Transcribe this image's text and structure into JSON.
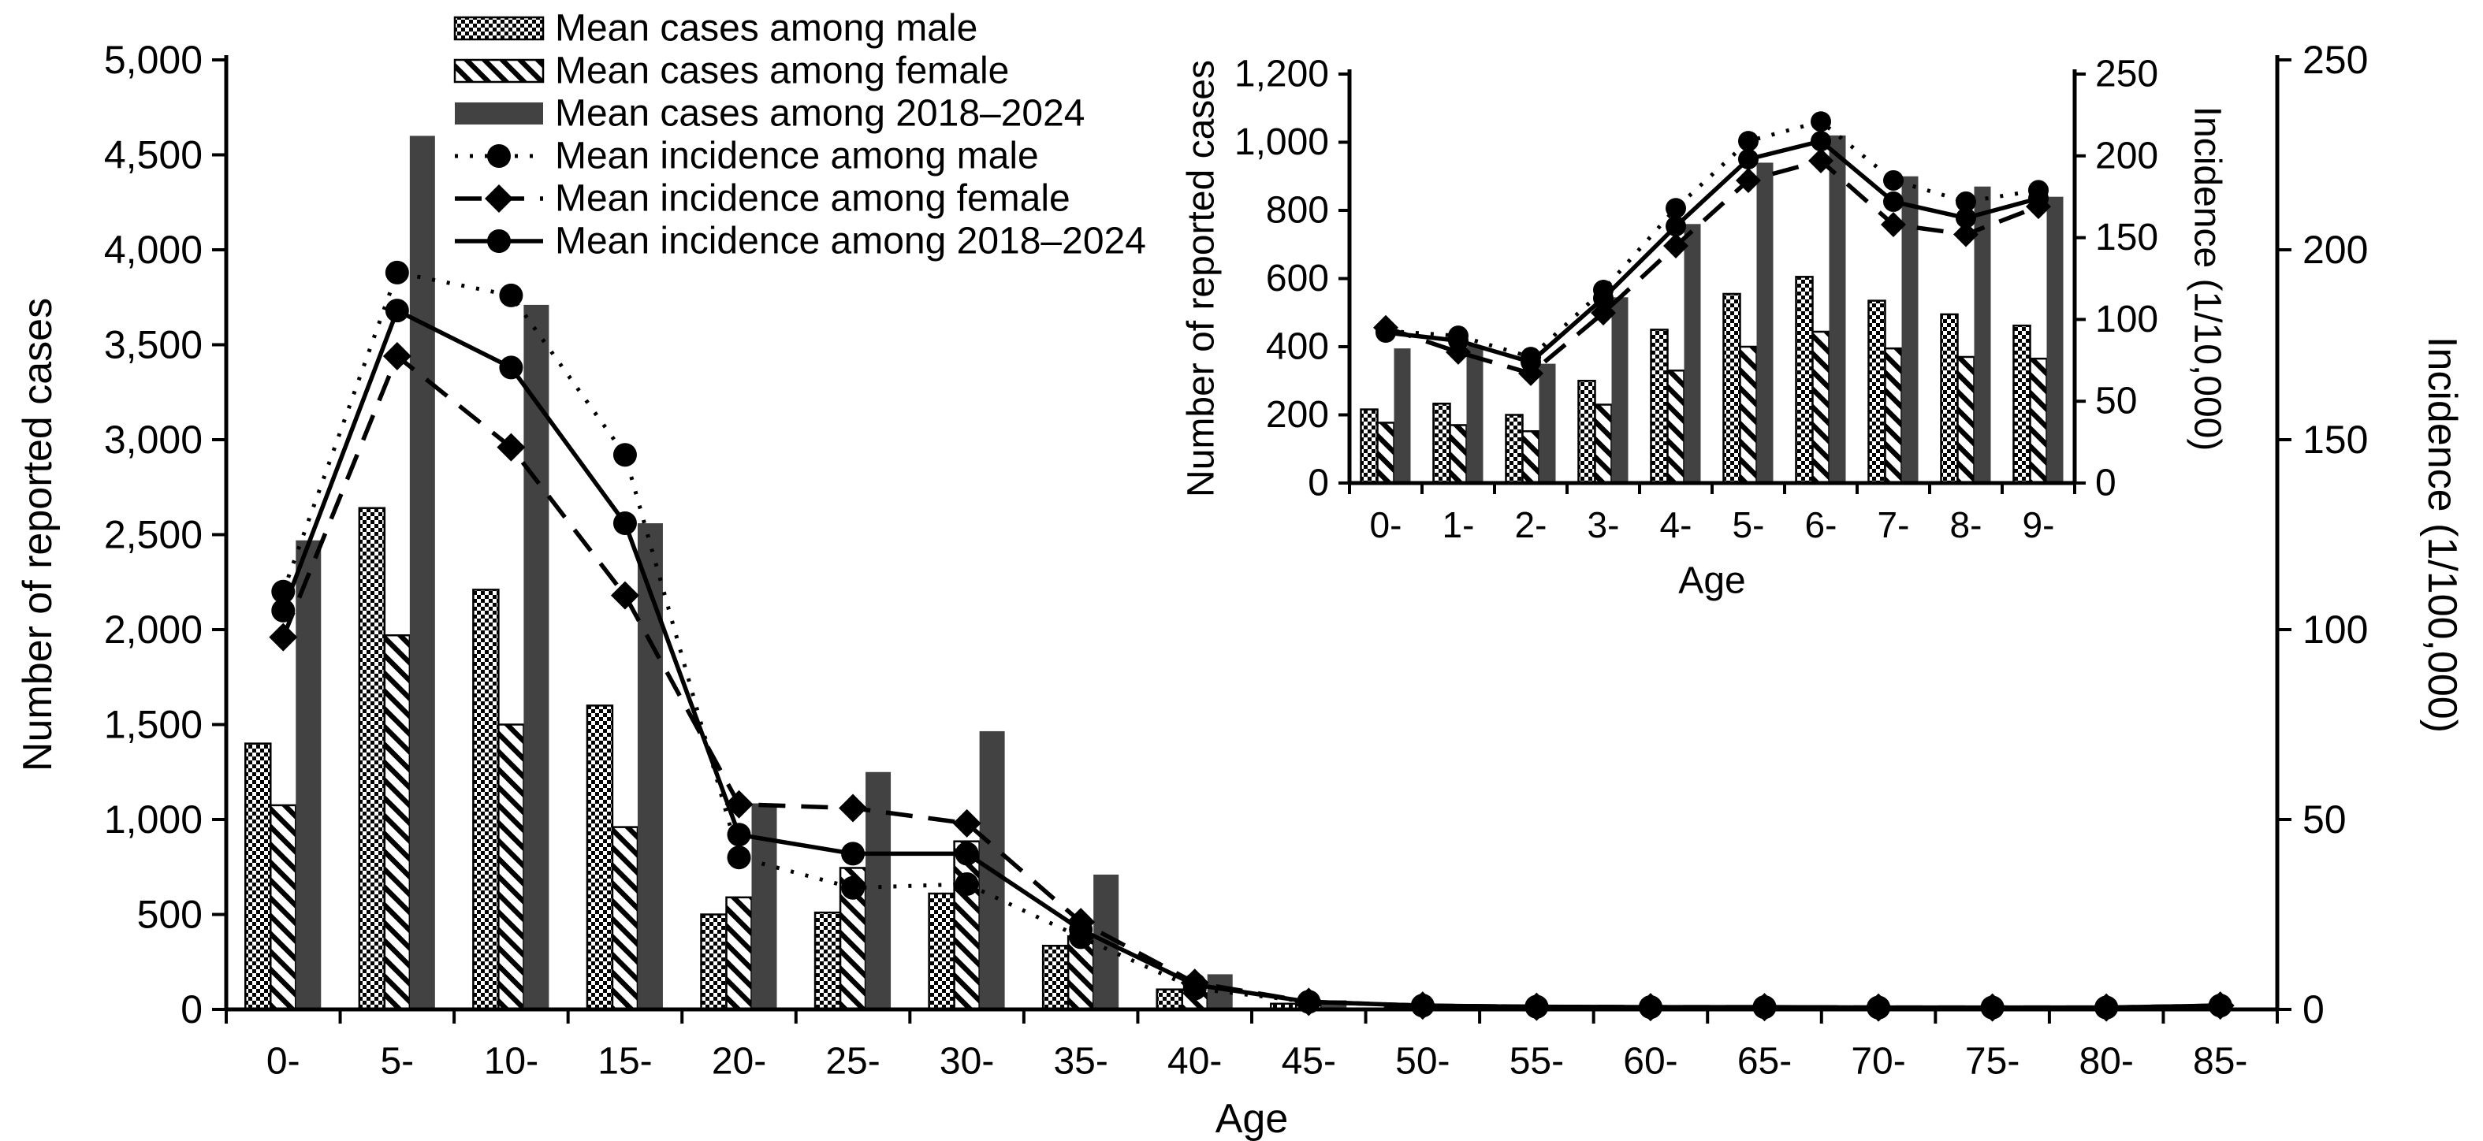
{
  "colors": {
    "ink": "#000000",
    "bar_overall": "#424242",
    "background": "#ffffff"
  },
  "legend": {
    "position": "top-left",
    "entries": [
      {
        "label": "Mean cases among male",
        "swatch": "bar-checker"
      },
      {
        "label": "Mean cases among female",
        "swatch": "bar-stripes"
      },
      {
        "label": "Mean cases among 2018–2024",
        "swatch": "bar-gray"
      },
      {
        "label": "Mean incidence among male",
        "swatch": "line-dotted-circle"
      },
      {
        "label": "Mean incidence among female",
        "swatch": "line-dashed-diamond"
      },
      {
        "label": "Mean incidence among 2018–2024",
        "swatch": "line-solid-circle"
      }
    ]
  },
  "chart_data": [
    {
      "id": "main",
      "type": "bar+line",
      "title": "",
      "xlabel": "Age",
      "ylabel_left": "Number of reported cases",
      "ylabel_right": "Incidence (1/100,000)",
      "ylim_left": [
        0,
        5000
      ],
      "ylim_right": [
        0,
        250
      ],
      "grid": false,
      "yticks_left": {
        "values": [
          0,
          500,
          1000,
          1500,
          2000,
          2500,
          3000,
          3500,
          4000,
          4500,
          5000
        ],
        "labels": [
          "0",
          "500",
          "1,000",
          "1,500",
          "2,000",
          "2,500",
          "3,000",
          "3,500",
          "4,000",
          "4,500",
          "5,000"
        ]
      },
      "yticks_right": {
        "values": [
          0,
          50,
          100,
          150,
          200,
          250
        ],
        "labels": [
          "0",
          "50",
          "100",
          "150",
          "200",
          "250"
        ]
      },
      "categories": [
        "0-",
        "5-",
        "10-",
        "15-",
        "20-",
        "25-",
        "30-",
        "35-",
        "40-",
        "45-",
        "50-",
        "55-",
        "60-",
        "65-",
        "70-",
        "75-",
        "80-",
        "85-"
      ],
      "bar_series": [
        {
          "name": "Mean cases among male",
          "pattern": "checker",
          "values": [
            1400,
            2640,
            2210,
            1600,
            500,
            510,
            610,
            335,
            105,
            30,
            10,
            5,
            4,
            4,
            3,
            3,
            3,
            4
          ]
        },
        {
          "name": "Mean cases among female",
          "pattern": "stripes",
          "values": [
            1075,
            1970,
            1500,
            960,
            590,
            745,
            885,
            385,
            85,
            22,
            8,
            4,
            3,
            3,
            2,
            2,
            2,
            3
          ]
        },
        {
          "name": "Mean cases among 2018–2024",
          "pattern": "solid",
          "values": [
            2470,
            4600,
            3710,
            2560,
            1085,
            1250,
            1465,
            710,
            185,
            48,
            16,
            8,
            6,
            6,
            5,
            5,
            5,
            6
          ]
        }
      ],
      "line_series": [
        {
          "name": "Mean incidence among male",
          "line": "dotted",
          "marker": "circle",
          "values": [
            110,
            194,
            188,
            146,
            40,
            32,
            33,
            19,
            5.5,
            2,
            1,
            0.7,
            0.6,
            0.6,
            0.5,
            0.5,
            0.5,
            1
          ]
        },
        {
          "name": "Mean incidence among female",
          "line": "dashed",
          "marker": "diamond",
          "values": [
            98,
            172,
            148,
            109,
            54,
            53,
            49,
            23,
            7,
            2,
            1,
            0.7,
            0.6,
            0.6,
            0.5,
            0.5,
            0.5,
            1
          ]
        },
        {
          "name": "Mean incidence among 2018–2024",
          "line": "solid",
          "marker": "circle",
          "values": [
            105,
            184,
            169,
            128,
            46,
            41,
            41,
            21,
            6.5,
            2,
            1,
            0.7,
            0.6,
            0.6,
            0.5,
            0.5,
            0.5,
            1
          ]
        }
      ]
    },
    {
      "id": "inset",
      "type": "bar+line",
      "title": "",
      "xlabel": "Age",
      "ylabel_left": "Number of reported cases",
      "ylabel_right": "Incidence (1/10,000)",
      "ylim_left": [
        0,
        1200
      ],
      "ylim_right": [
        0,
        250
      ],
      "grid": false,
      "yticks_left": {
        "values": [
          0,
          200,
          400,
          600,
          800,
          1000,
          1200
        ],
        "labels": [
          "0",
          "200",
          "400",
          "600",
          "800",
          "1,000",
          "1,200"
        ]
      },
      "yticks_right": {
        "values": [
          0,
          50,
          100,
          150,
          200,
          250
        ],
        "labels": [
          "0",
          "50",
          "100",
          "150",
          "200",
          "250"
        ]
      },
      "categories": [
        "0-",
        "1-",
        "2-",
        "3-",
        "4-",
        "5-",
        "6-",
        "7-",
        "8-",
        "9-"
      ],
      "bar_series": [
        {
          "name": "Mean cases among male",
          "pattern": "checker",
          "values": [
            216,
            233,
            200,
            300,
            450,
            555,
            605,
            535,
            495,
            462
          ]
        },
        {
          "name": "Mean cases among female",
          "pattern": "stripes",
          "values": [
            177,
            170,
            152,
            230,
            330,
            400,
            444,
            395,
            370,
            365
          ]
        },
        {
          "name": "Mean cases among 2018–2024",
          "pattern": "solid",
          "values": [
            395,
            402,
            350,
            545,
            760,
            940,
            1020,
            900,
            870,
            840
          ]
        }
      ],
      "line_series": [
        {
          "name": "Mean incidence among male",
          "line": "dotted",
          "marker": "circle",
          "values": [
            93,
            90,
            77,
            118,
            168,
            209,
            221,
            185,
            172,
            179
          ]
        },
        {
          "name": "Mean incidence among female",
          "line": "dashed",
          "marker": "diamond",
          "values": [
            95,
            80,
            67,
            104,
            145,
            185,
            197,
            158,
            152,
            169
          ]
        },
        {
          "name": "Mean incidence among 2018–2024",
          "line": "solid",
          "marker": "circle",
          "values": [
            92,
            87,
            74,
            113,
            157,
            198,
            209,
            172,
            162,
            174
          ]
        }
      ]
    }
  ]
}
